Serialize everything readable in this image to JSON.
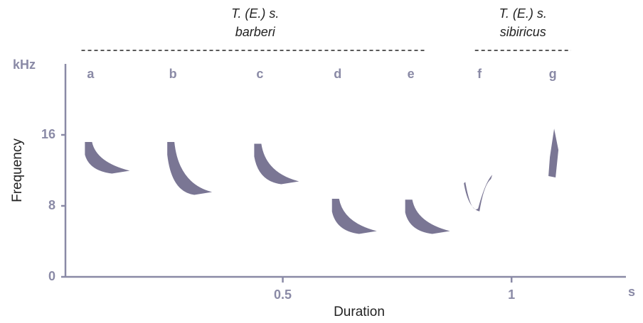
{
  "chart_data": {
    "type": "spectrogram",
    "x_label": "Duration",
    "y_label": "Frequency",
    "x_unit": "s",
    "y_unit": "kHz",
    "xlim": [
      0.025,
      1.25
    ],
    "xticks": [
      0.5,
      1
    ],
    "ylim": [
      0,
      24
    ],
    "yticks": [
      0,
      8,
      16
    ],
    "color": "#4e4870",
    "groups": [
      {
        "lines": [
          "T. (E.) s.",
          "barberi"
        ],
        "span": [
          0.06,
          0.81
        ]
      },
      {
        "lines": [
          "T. (E.) s.",
          "sibiricus"
        ],
        "span": [
          0.92,
          1.13
        ]
      }
    ],
    "syllables": [
      {
        "label": "a",
        "time": 0.08,
        "freq": [
          11.8,
          15.2
        ]
      },
      {
        "label": "b",
        "time": 0.26,
        "freq": [
          9.4,
          15.2
        ]
      },
      {
        "label": "c",
        "time": 0.45,
        "freq": [
          10.6,
          15
        ]
      },
      {
        "label": "d",
        "time": 0.62,
        "freq": [
          5,
          8.8
        ]
      },
      {
        "label": "e",
        "time": 0.78,
        "freq": [
          5,
          8.7
        ]
      },
      {
        "label": "f",
        "time": 0.93,
        "freq": [
          7.7,
          11.5
        ]
      },
      {
        "label": "g",
        "time": 1.09,
        "freq": [
          11.2,
          16.7
        ]
      }
    ]
  }
}
